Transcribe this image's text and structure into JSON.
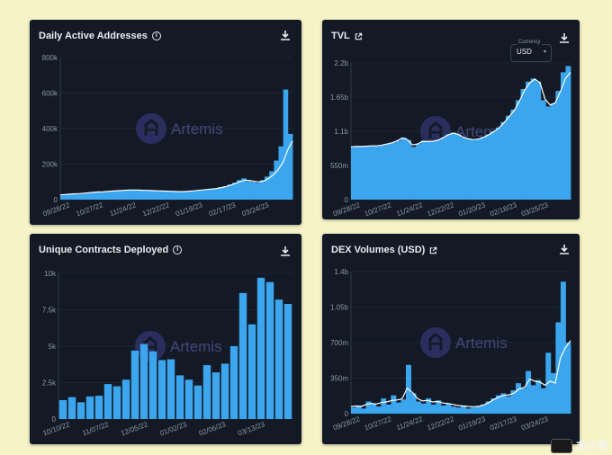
{
  "brand": {
    "watermark": "Artemis",
    "accent": "#3ba6ee",
    "line": "#ffffff"
  },
  "corner_watermark": {
    "text": "非小号"
  },
  "panels": {
    "daily": {
      "title": "Daily Active Addresses",
      "currency": null
    },
    "tvl": {
      "title": "TVL",
      "currency_label": "Currency",
      "currency_value": "USD",
      "currency_caret": "▾"
    },
    "contracts": {
      "title": "Unique Contracts Deployed"
    },
    "dex": {
      "title": "DEX Volumes (USD)"
    }
  },
  "chart_data": [
    {
      "id": "daily",
      "type": "area",
      "title": "Daily Active Addresses",
      "y_ticks": [
        "0",
        "200k",
        "400k",
        "600k",
        "800k"
      ],
      "ylim": [
        0,
        800000
      ],
      "x_ticks": [
        "09/28/22",
        "10/27/22",
        "11/24/22",
        "12/22/22",
        "01/19/23",
        "02/17/23",
        "03/24/23"
      ],
      "series": [
        {
          "name": "daily",
          "style": "bar",
          "values": [
            25000,
            28000,
            30000,
            32000,
            31000,
            35000,
            38000,
            40000,
            42000,
            45000,
            44000,
            48000,
            52000,
            50000,
            55000,
            56000,
            54000,
            53000,
            52000,
            50000,
            49000,
            50000,
            48000,
            46000,
            47000,
            45000,
            44000,
            46000,
            50000,
            52000,
            55000,
            58000,
            60000,
            62000,
            70000,
            75000,
            85000,
            95000,
            110000,
            120000,
            105000,
            100000,
            95000,
            110000,
            130000,
            160000,
            220000,
            300000,
            620000,
            370000
          ]
        },
        {
          "name": "moving average",
          "style": "line",
          "values": [
            27000,
            29000,
            31000,
            33000,
            34000,
            36000,
            39000,
            41000,
            43000,
            44000,
            46000,
            48000,
            50000,
            51000,
            53000,
            54000,
            54000,
            53000,
            52000,
            51000,
            50000,
            49000,
            48000,
            47000,
            46000,
            45000,
            45000,
            47000,
            49000,
            52000,
            54000,
            57000,
            60000,
            63000,
            68000,
            74000,
            82000,
            92000,
            102000,
            110000,
            108000,
            103000,
            100000,
            105000,
            120000,
            140000,
            170000,
            210000,
            280000,
            330000
          ]
        }
      ]
    },
    {
      "id": "tvl",
      "type": "area",
      "title": "TVL",
      "y_ticks": [
        "0",
        "550m",
        "1.1b",
        "1.65b",
        "2.2b"
      ],
      "ylim": [
        0,
        2200000000
      ],
      "x_ticks": [
        "09/28/22",
        "10/27/22",
        "11/24/22",
        "12/22/22",
        "01/20/23",
        "02/18/23",
        "03/25/23"
      ],
      "series": [
        {
          "name": "tvl",
          "style": "bar",
          "values": [
            850000000,
            860000000,
            850000000,
            860000000,
            870000000,
            860000000,
            880000000,
            900000000,
            920000000,
            950000000,
            1000000000,
            960000000,
            850000000,
            900000000,
            950000000,
            930000000,
            940000000,
            960000000,
            1000000000,
            1050000000,
            1080000000,
            1050000000,
            1000000000,
            980000000,
            960000000,
            980000000,
            1010000000,
            1050000000,
            1100000000,
            1160000000,
            1250000000,
            1350000000,
            1450000000,
            1600000000,
            1780000000,
            1900000000,
            1950000000,
            1900000000,
            1600000000,
            1500000000,
            1550000000,
            1750000000,
            2050000000,
            2150000000
          ]
        },
        {
          "name": "moving average",
          "style": "line",
          "values": [
            850000000,
            855000000,
            855000000,
            860000000,
            865000000,
            865000000,
            875000000,
            895000000,
            915000000,
            945000000,
            990000000,
            970000000,
            880000000,
            895000000,
            935000000,
            935000000,
            940000000,
            955000000,
            995000000,
            1040000000,
            1070000000,
            1050000000,
            1005000000,
            980000000,
            965000000,
            975000000,
            1005000000,
            1045000000,
            1095000000,
            1155000000,
            1240000000,
            1340000000,
            1440000000,
            1590000000,
            1760000000,
            1880000000,
            1940000000,
            1880000000,
            1620000000,
            1520000000,
            1560000000,
            1740000000,
            1950000000,
            2050000000
          ]
        }
      ]
    },
    {
      "id": "contracts",
      "type": "bar",
      "title": "Unique Contracts Deployed",
      "y_ticks": [
        "0",
        "2.5k",
        "5k",
        "7.5k",
        "10k"
      ],
      "ylim": [
        0,
        10000
      ],
      "x_ticks": [
        "10/10/22",
        "11/07/22",
        "12/05/22",
        "01/02/23",
        "02/06/23",
        "03/13/23"
      ],
      "values": [
        1300,
        1500,
        1150,
        1550,
        1600,
        2400,
        2250,
        2700,
        4700,
        5150,
        4650,
        4050,
        4100,
        3000,
        2700,
        2300,
        3700,
        3200,
        3800,
        5000,
        8650,
        6500,
        9700,
        9400,
        8200,
        7900
      ]
    },
    {
      "id": "dex",
      "type": "area",
      "title": "DEX Volumes (USD)",
      "y_ticks": [
        "0",
        "350m",
        "700m",
        "1.05b",
        "1.4b"
      ],
      "ylim": [
        0,
        1400000000
      ],
      "x_ticks": [
        "09/28/22",
        "10/27/22",
        "11/24/22",
        "12/22/22",
        "01/19/23",
        "02/17/23",
        "03/24/23"
      ],
      "series": [
        {
          "name": "dex",
          "style": "bar",
          "values": [
            60000000,
            80000000,
            50000000,
            120000000,
            100000000,
            70000000,
            150000000,
            90000000,
            180000000,
            110000000,
            140000000,
            480000000,
            200000000,
            120000000,
            100000000,
            150000000,
            90000000,
            130000000,
            80000000,
            100000000,
            70000000,
            60000000,
            80000000,
            50000000,
            60000000,
            70000000,
            90000000,
            120000000,
            150000000,
            180000000,
            200000000,
            170000000,
            230000000,
            300000000,
            250000000,
            420000000,
            280000000,
            330000000,
            250000000,
            600000000,
            400000000,
            900000000,
            1300000000,
            700000000
          ]
        },
        {
          "name": "moving average",
          "style": "line",
          "values": [
            70000000,
            75000000,
            70000000,
            90000000,
            100000000,
            95000000,
            110000000,
            115000000,
            130000000,
            135000000,
            145000000,
            250000000,
            210000000,
            150000000,
            125000000,
            130000000,
            115000000,
            120000000,
            105000000,
            100000000,
            90000000,
            80000000,
            75000000,
            70000000,
            68000000,
            72000000,
            85000000,
            110000000,
            140000000,
            165000000,
            180000000,
            185000000,
            205000000,
            245000000,
            260000000,
            340000000,
            320000000,
            310000000,
            280000000,
            320000000,
            300000000,
            550000000,
            650000000,
            720000000
          ]
        }
      ]
    }
  ]
}
